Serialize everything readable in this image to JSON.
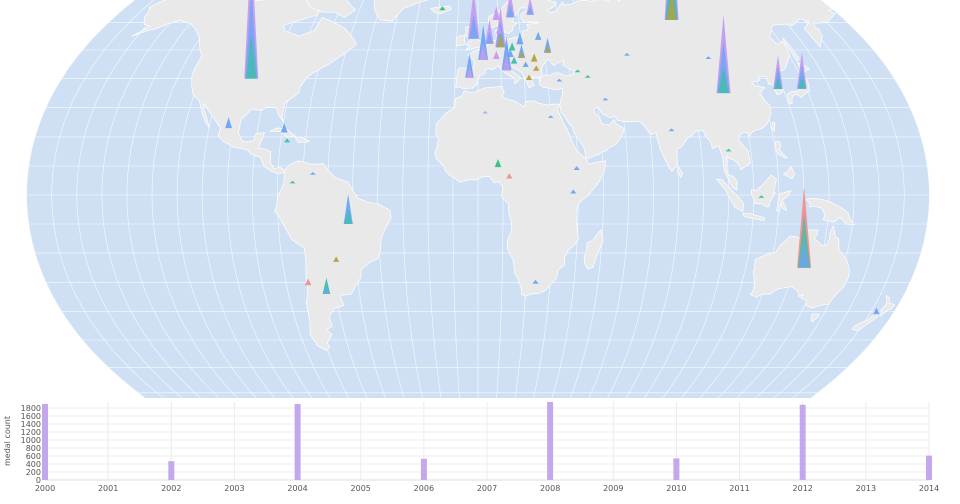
{
  "colors": {
    "ocean": "#cfe0f5",
    "land": "#e9e9e9",
    "border": "#ffffff",
    "graticule": "#ffffff",
    "bar": "#c4a8ee",
    "grid": "#ececec",
    "axis_text": "#555555",
    "marker_palette": [
      "#6ba5f2",
      "#c49cf0",
      "#3cbfa8",
      "#b5a23a",
      "#f08f8f",
      "#2ec27e"
    ]
  },
  "map": {
    "projection": "natural-earth",
    "markers": [
      {
        "country": "United States",
        "lon": -98,
        "lat": 40,
        "colors": [
          "#c49cf0",
          "#6ba5f2",
          "#3cbfa8"
        ],
        "value": 1.0
      },
      {
        "country": "Mexico",
        "lon": -102,
        "lat": 23,
        "colors": [
          "#6ba5f2"
        ],
        "value": 0.08
      },
      {
        "country": "Cuba",
        "lon": -79,
        "lat": 21.5,
        "colors": [
          "#6ba5f2"
        ],
        "value": 0.07
      },
      {
        "country": "Jamaica",
        "lon": -77.3,
        "lat": 18.1,
        "colors": [
          "#3cbfa8"
        ],
        "value": 0.03
      },
      {
        "country": "Brazil",
        "lon": -52,
        "lat": -10,
        "colors": [
          "#6ba5f2",
          "#3cbfa8"
        ],
        "value": 0.22
      },
      {
        "country": "Argentina",
        "lon": -64,
        "lat": -34,
        "colors": [
          "#3cbfa8",
          "#6ba5f2"
        ],
        "value": 0.12
      },
      {
        "country": "Chile",
        "lon": -71,
        "lat": -31,
        "colors": [
          "#f08f8f"
        ],
        "value": 0.05
      },
      {
        "country": "Paraguay",
        "lon": -58,
        "lat": -23,
        "colors": [
          "#b5a23a"
        ],
        "value": 0.04
      },
      {
        "country": "Colombia",
        "lon": -74,
        "lat": 4,
        "colors": [
          "#3cbfa8"
        ],
        "value": 0.02
      },
      {
        "country": "Venezuela",
        "lon": -66,
        "lat": 7,
        "colors": [
          "#6ba5f2"
        ],
        "value": 0.02
      },
      {
        "country": "Iceland",
        "lon": -18,
        "lat": 64.8,
        "colors": [
          "#2ec27e"
        ],
        "value": 0.03
      },
      {
        "country": "United Kingdom",
        "lon": -2,
        "lat": 54,
        "colors": [
          "#c49cf0",
          "#6ba5f2"
        ],
        "value": 0.36
      },
      {
        "country": "France",
        "lon": 2.3,
        "lat": 46.5,
        "colors": [
          "#6ba5f2",
          "#c49cf0"
        ],
        "value": 0.26
      },
      {
        "country": "Spain",
        "lon": -3.7,
        "lat": 40.3,
        "colors": [
          "#6ba5f2",
          "#c49cf0"
        ],
        "value": 0.18
      },
      {
        "country": "Germany",
        "lon": 10.3,
        "lat": 51,
        "colors": [
          "#c49cf0",
          "#6ba5f2",
          "#b5a23a"
        ],
        "value": 0.3
      },
      {
        "country": "Netherlands",
        "lon": 5.3,
        "lat": 52.2,
        "colors": [
          "#c49cf0",
          "#6ba5f2"
        ],
        "value": 0.18
      },
      {
        "country": "Norway",
        "lon": 9,
        "lat": 61,
        "colors": [
          "#c49cf0"
        ],
        "value": 0.1
      },
      {
        "country": "Sweden",
        "lon": 16,
        "lat": 62,
        "colors": [
          "#c49cf0",
          "#6ba5f2"
        ],
        "value": 0.2
      },
      {
        "country": "Finland",
        "lon": 26,
        "lat": 63,
        "colors": [
          "#c49cf0",
          "#6ba5f2"
        ],
        "value": 0.13
      },
      {
        "country": "Denmark",
        "lon": 10,
        "lat": 56,
        "colors": [
          "#c49cf0"
        ],
        "value": 0.05
      },
      {
        "country": "Italy",
        "lon": 12.5,
        "lat": 42.8,
        "colors": [
          "#6ba5f2",
          "#c49cf0"
        ],
        "value": 0.25
      },
      {
        "country": "Switzerland",
        "lon": 8.2,
        "lat": 46.8,
        "colors": [
          "#c49cf0"
        ],
        "value": 0.06
      },
      {
        "country": "Austria",
        "lon": 14.5,
        "lat": 47.5,
        "colors": [
          "#6ba5f2"
        ],
        "value": 0.06
      },
      {
        "country": "Poland",
        "lon": 19.3,
        "lat": 52,
        "colors": [
          "#6ba5f2"
        ],
        "value": 0.09
      },
      {
        "country": "Czech Republic",
        "lon": 15.5,
        "lat": 49.8,
        "colors": [
          "#3cbfa8"
        ],
        "value": 0.06
      },
      {
        "country": "Hungary",
        "lon": 19.5,
        "lat": 47.2,
        "colors": [
          "#6ba5f2",
          "#b5a23a"
        ],
        "value": 0.1
      },
      {
        "country": "Belarus",
        "lon": 28,
        "lat": 53.6,
        "colors": [
          "#6ba5f2"
        ],
        "value": 0.06
      },
      {
        "country": "Ukraine",
        "lon": 31.5,
        "lat": 49,
        "colors": [
          "#6ba5f2",
          "#b5a23a"
        ],
        "value": 0.11
      },
      {
        "country": "Romania",
        "lon": 25,
        "lat": 45.9,
        "colors": [
          "#b5a23a"
        ],
        "value": 0.06
      },
      {
        "country": "Croatia",
        "lon": 16,
        "lat": 45.2,
        "colors": [
          "#3cbfa8"
        ],
        "value": 0.05
      },
      {
        "country": "Serbia",
        "lon": 21,
        "lat": 44,
        "colors": [
          "#6ba5f2"
        ],
        "value": 0.04
      },
      {
        "country": "Bulgaria",
        "lon": 25.5,
        "lat": 42.7,
        "colors": [
          "#b5a23a"
        ],
        "value": 0.04
      },
      {
        "country": "Greece",
        "lon": 22,
        "lat": 39.5,
        "colors": [
          "#b5a23a"
        ],
        "value": 0.04
      },
      {
        "country": "Turkey",
        "lon": 35,
        "lat": 39,
        "colors": [
          "#6ba5f2"
        ],
        "value": 0.02
      },
      {
        "country": "Georgia",
        "lon": 43.5,
        "lat": 42.2,
        "colors": [
          "#3cbfa8"
        ],
        "value": 0.02
      },
      {
        "country": "Azerbaijan",
        "lon": 47.5,
        "lat": 40.3,
        "colors": [
          "#3cbfa8"
        ],
        "value": 0.02
      },
      {
        "country": "Kazakhstan",
        "lon": 67,
        "lat": 48,
        "colors": [
          "#6ba5f2"
        ],
        "value": 0.02
      },
      {
        "country": "Russia",
        "lon": 95,
        "lat": 61,
        "colors": [
          "#c49cf0",
          "#6ba5f2",
          "#3cbfa8",
          "#b5a23a"
        ],
        "value": 0.85
      },
      {
        "country": "China",
        "lon": 104,
        "lat": 35,
        "colors": [
          "#c49cf0",
          "#6ba5f2",
          "#3cbfa8"
        ],
        "value": 0.58
      },
      {
        "country": "Mongolia",
        "lon": 103,
        "lat": 46.8,
        "colors": [
          "#6ba5f2"
        ],
        "value": 0.02
      },
      {
        "country": "South Korea",
        "lon": 127.8,
        "lat": 36.4,
        "colors": [
          "#c49cf0",
          "#6ba5f2",
          "#3cbfa8"
        ],
        "value": 0.25
      },
      {
        "country": "Japan",
        "lon": 138,
        "lat": 36.5,
        "colors": [
          "#c49cf0",
          "#6ba5f2",
          "#3cbfa8"
        ],
        "value": 0.27
      },
      {
        "country": "India",
        "lon": 79,
        "lat": 22,
        "colors": [
          "#6ba5f2"
        ],
        "value": 0.02
      },
      {
        "country": "Thailand",
        "lon": 101,
        "lat": 15,
        "colors": [
          "#3cbfa8"
        ],
        "value": 0.02
      },
      {
        "country": "Indonesia",
        "lon": 113,
        "lat": -1,
        "colors": [
          "#3cbfa8"
        ],
        "value": 0.02
      },
      {
        "country": "Iran",
        "lon": 53.5,
        "lat": 32.5,
        "colors": [
          "#6ba5f2"
        ],
        "value": 0.02
      },
      {
        "country": "Egypt",
        "lon": 30,
        "lat": 26.5,
        "colors": [
          "#6ba5f2"
        ],
        "value": 0.01
      },
      {
        "country": "Algeria",
        "lon": 3,
        "lat": 28,
        "colors": [
          "#c49cf0"
        ],
        "value": 0.01
      },
      {
        "country": "Nigeria",
        "lon": 8,
        "lat": 9.6,
        "colors": [
          "#2ec27e"
        ],
        "value": 0.06
      },
      {
        "country": "Cameroon",
        "lon": 12.5,
        "lat": 5.7,
        "colors": [
          "#f08f8f"
        ],
        "value": 0.04
      },
      {
        "country": "Ethiopia",
        "lon": 39.5,
        "lat": 8.6,
        "colors": [
          "#6ba5f2"
        ],
        "value": 0.03
      },
      {
        "country": "Kenya",
        "lon": 38,
        "lat": 0.5,
        "colors": [
          "#6ba5f2"
        ],
        "value": 0.03
      },
      {
        "country": "South Africa",
        "lon": 24,
        "lat": -30.5,
        "colors": [
          "#6ba5f2"
        ],
        "value": 0.03
      },
      {
        "country": "Australia",
        "lon": 134,
        "lat": -25,
        "colors": [
          "#f08f8f",
          "#3cbfa8",
          "#6ba5f2"
        ],
        "value": 0.6
      },
      {
        "country": "New Zealand",
        "lon": 173,
        "lat": -41,
        "colors": [
          "#6ba5f2"
        ],
        "value": 0.05
      }
    ]
  },
  "chart_data": {
    "type": "bar",
    "x": [
      2000,
      2002,
      2004,
      2006,
      2008,
      2010,
      2012,
      2014
    ],
    "values": [
      1900,
      470,
      1900,
      530,
      1950,
      540,
      1880,
      610
    ],
    "x_ticks": [
      "2000",
      "2001",
      "2002",
      "2003",
      "2004",
      "2005",
      "2006",
      "2007",
      "2008",
      "2009",
      "2010",
      "2011",
      "2012",
      "2013",
      "2014"
    ],
    "y_ticks": [
      "0",
      "200",
      "400",
      "600",
      "800",
      "1000",
      "1200",
      "1400",
      "1600",
      "1800"
    ],
    "xlim": [
      2000,
      2014
    ],
    "ylim": [
      0,
      1950
    ],
    "ylabel": "medal count",
    "xlabel": "",
    "grid": true
  }
}
